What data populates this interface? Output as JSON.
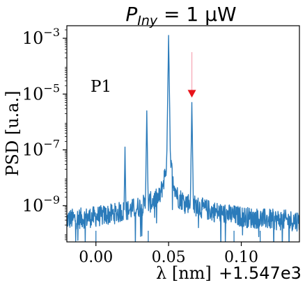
{
  "chart_data": {
    "type": "line",
    "title_main": "P",
    "title_sub": "Iny",
    "title_rest": " = 1 μW",
    "xlabel": "λ [nm]",
    "x_offset_label": "+1.547e3",
    "ylabel": "PSD [u.a.]",
    "annotation": "P1",
    "x_range": [
      -0.02,
      0.14
    ],
    "y_log_range": [
      -10.3,
      -2.55
    ],
    "x_ticks": [
      {
        "value": 0.0,
        "label": "0.00"
      },
      {
        "value": 0.05,
        "label": "0.05"
      },
      {
        "value": 0.1,
        "label": "0.10"
      }
    ],
    "y_ticks": [
      {
        "exp": -3,
        "base": "10",
        "sup": "−3"
      },
      {
        "exp": -5,
        "base": "10",
        "sup": "−5"
      },
      {
        "exp": -7,
        "base": "10",
        "sup": "−7"
      },
      {
        "exp": -9,
        "base": "10",
        "sup": "−9"
      }
    ],
    "series": [
      {
        "color": "#2b7bba",
        "peaks": [
          {
            "x": 0.05,
            "log10_psd": -2.9
          },
          {
            "x": 0.035,
            "log10_psd": -5.6
          },
          {
            "x": 0.066,
            "log10_psd": -5.3
          },
          {
            "x": 0.02,
            "log10_psd": -6.9
          }
        ],
        "noise_floor_log10_psd": -9.6
      }
    ],
    "marker": {
      "x": 0.066,
      "log10_psd": -5.0,
      "color": "#e8141b",
      "line_color": "#f7a9b8"
    }
  }
}
